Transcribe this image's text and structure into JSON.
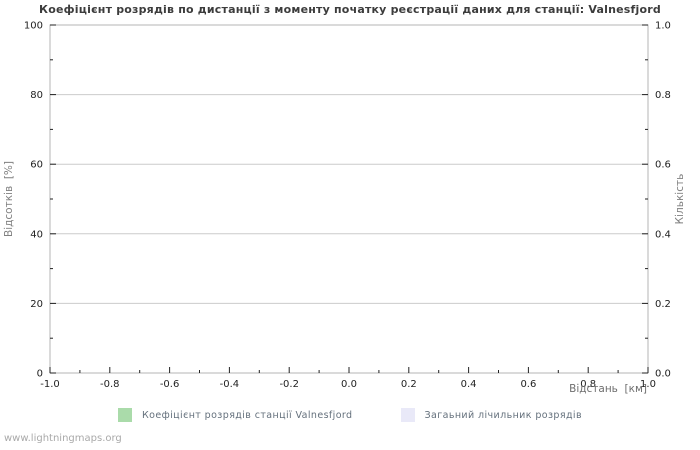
{
  "page": {
    "watermark": "www.lightningmaps.org"
  },
  "chart_data": {
    "type": "line",
    "title": "Коефіцієнт розрядів по дистанції з моменту початку реєстрації даних для станції: Valnesfjord",
    "xlabel": "Відстань  [км]",
    "ylabel_left": "Відсотків  [%]",
    "ylabel_right": "Кількість",
    "xlim": [
      -1.0,
      1.0
    ],
    "ylim_left": [
      0,
      100
    ],
    "ylim_right": [
      0.0,
      1.0
    ],
    "x_major_ticks": [
      -1.0,
      -0.8,
      -0.6,
      -0.4,
      -0.2,
      0.0,
      0.2,
      0.4,
      0.6,
      0.8,
      1.0
    ],
    "x_tick_labels": [
      "-1.0",
      "-0.8",
      "-0.6",
      "-0.4",
      "-0.2",
      "0.0",
      "0.2",
      "0.4",
      "0.6",
      "0.8",
      "1.0"
    ],
    "x_minor_step": 0.1,
    "y_left_major_ticks": [
      0,
      20,
      40,
      60,
      80,
      100
    ],
    "y_left_tick_labels": [
      "0",
      "20",
      "40",
      "60",
      "80",
      "100"
    ],
    "y_left_minor_step": 10,
    "y_right_major_ticks": [
      0.0,
      0.2,
      0.4,
      0.6,
      0.8,
      1.0
    ],
    "y_right_tick_labels": [
      "0.0",
      "0.2",
      "0.4",
      "0.6",
      "0.8",
      "1.0"
    ],
    "y_right_minor_step": 0.1,
    "grid": "horizontal-major-only",
    "legend_position": "bottom",
    "series": [
      {
        "name": "Коефіцієнт розрядів станції Valnesfjord",
        "color": "#aadbaa",
        "values": []
      },
      {
        "name": "Загаьний лічильник розрядів",
        "color": "#e9e9f8",
        "values": []
      }
    ],
    "colors": {
      "grid": "#cccccc",
      "border": "#b4b4b4",
      "tick": "#222222",
      "tick_label": "#222222",
      "title": "#3c3c3c",
      "background": "#ffffff"
    }
  }
}
